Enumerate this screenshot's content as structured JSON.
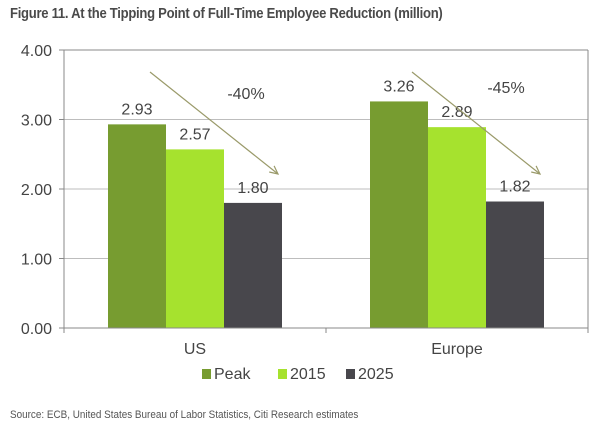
{
  "title": "Figure 11. At the Tipping Point of Full-Time Employee Reduction (million)",
  "source": "Source: ECB, United States Bureau of Labor Statistics, Citi Research estimates",
  "chart_data": {
    "type": "bar",
    "title": "Figure 11. At the Tipping Point of Full-Time Employee Reduction (million)",
    "xlabel": "",
    "ylabel": "",
    "categories": [
      "US",
      "Europe"
    ],
    "series": [
      {
        "name": "Peak",
        "values": [
          2.93,
          3.26
        ],
        "labels": [
          "2.93",
          "3.26"
        ],
        "color": "#779c30"
      },
      {
        "name": "2015",
        "values": [
          2.57,
          2.89
        ],
        "labels": [
          "2.57",
          "2.89"
        ],
        "color": "#a6e22e"
      },
      {
        "name": "2025",
        "values": [
          1.8,
          1.82
        ],
        "labels": [
          "1.80",
          "1.82"
        ],
        "color": "#48474c"
      }
    ],
    "ylim": [
      0,
      4
    ],
    "yticks": [
      0,
      1,
      2,
      3,
      4
    ],
    "ytick_labels": [
      "0.00",
      "1.00",
      "2.00",
      "3.00",
      "4.00"
    ],
    "grid": true,
    "legend": "bottom-center",
    "annotations": [
      {
        "category": "US",
        "text": "-40%",
        "type": "downward-arrow"
      },
      {
        "category": "Europe",
        "text": "-45%",
        "type": "downward-arrow"
      }
    ],
    "annotation_color": "#9a9a6a",
    "grid_color": "#bdbdbd",
    "axis_color": "#888888"
  }
}
